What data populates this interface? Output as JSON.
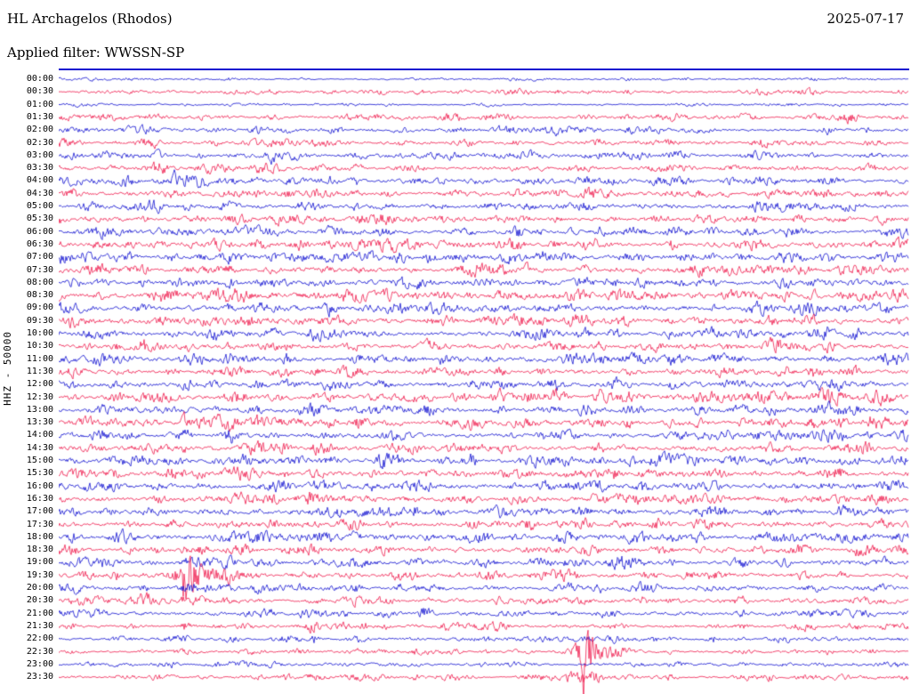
{
  "header": {
    "station_title": "HL Archagelos (Rhodos)",
    "date": "2025-07-17",
    "filter_label": "Applied filter: WWSSN-SP"
  },
  "axis": {
    "scale_label": "HHZ - 50000"
  },
  "colors": {
    "trace_blue": "#1212d0",
    "trace_red": "#ef1a4d",
    "text": "#000000",
    "background": "#ffffff",
    "top_line": "#1212d0"
  },
  "chart_data": {
    "type": "line",
    "title": "HL Archagelos (Rhodos) helicorder, 2025-07-17, filter WWSSN-SP, channel HHZ, scale 50000",
    "minutes_per_row": 30,
    "legend_position": "none",
    "grid": false,
    "color_pattern": [
      "blue",
      "red"
    ],
    "row_labels": [
      "00:00",
      "00:30",
      "01:00",
      "01:30",
      "02:00",
      "02:30",
      "03:00",
      "03:30",
      "04:00",
      "04:30",
      "05:00",
      "05:30",
      "06:00",
      "06:30",
      "07:00",
      "07:30",
      "08:00",
      "08:30",
      "09:00",
      "09:30",
      "10:00",
      "10:30",
      "11:00",
      "11:30",
      "12:00",
      "12:30",
      "13:00",
      "13:30",
      "14:00",
      "14:30",
      "15:00",
      "15:30",
      "16:00",
      "16:30",
      "17:00",
      "17:30",
      "18:00",
      "18:30",
      "19:00",
      "19:30",
      "20:00",
      "20:30",
      "21:00",
      "21:30",
      "22:00",
      "22:30",
      "23:00",
      "23:30"
    ],
    "base_amplitudes": [
      1.0,
      1.6,
      0.9,
      2.0,
      2.2,
      2.2,
      2.3,
      2.4,
      2.6,
      2.8,
      2.8,
      2.8,
      3.0,
      3.2,
      3.2,
      3.4,
      3.5,
      3.5,
      3.5,
      3.4,
      3.5,
      3.5,
      3.4,
      3.3,
      3.3,
      3.5,
      3.4,
      3.5,
      3.4,
      3.3,
      3.3,
      3.3,
      3.5,
      3.5,
      3.4,
      3.2,
      3.2,
      3.0,
      3.0,
      2.8,
      2.6,
      2.6,
      2.4,
      2.2,
      2.0,
      1.8,
      1.6,
      1.8
    ],
    "events": [
      {
        "row": 1,
        "pos": 0.38,
        "sigma": 0.004,
        "amp": 5
      },
      {
        "row": 3,
        "pos": 0.72,
        "sigma": 0.01,
        "amp": 7
      },
      {
        "row": 3,
        "pos": 0.93,
        "sigma": 0.006,
        "amp": 6
      },
      {
        "row": 4,
        "pos": 0.33,
        "sigma": 0.004,
        "amp": 5
      },
      {
        "row": 4,
        "pos": 0.1,
        "sigma": 0.008,
        "amp": 5
      },
      {
        "row": 5,
        "pos": 0.11,
        "sigma": 0.006,
        "amp": 6
      },
      {
        "row": 6,
        "pos": 0.25,
        "sigma": 0.004,
        "amp": 5
      },
      {
        "row": 7,
        "pos": 0.12,
        "sigma": 0.008,
        "amp": 6
      },
      {
        "row": 8,
        "pos": 0.136,
        "sigma": 0.006,
        "amp": 14
      },
      {
        "row": 8,
        "pos": 0.16,
        "sigma": 0.012,
        "amp": 5
      },
      {
        "row": 9,
        "pos": 0.35,
        "sigma": 0.004,
        "amp": 6
      },
      {
        "row": 10,
        "pos": 0.35,
        "sigma": 0.003,
        "amp": 8
      },
      {
        "row": 10,
        "pos": 0.62,
        "sigma": 0.004,
        "amp": 5
      },
      {
        "row": 12,
        "pos": 0.54,
        "sigma": 0.004,
        "amp": 6
      },
      {
        "row": 13,
        "pos": 0.54,
        "sigma": 0.005,
        "amp": 7
      },
      {
        "row": 13,
        "pos": 0.63,
        "sigma": 0.004,
        "amp": 6
      },
      {
        "row": 14,
        "pos": 0.25,
        "sigma": 0.004,
        "amp": 6
      },
      {
        "row": 15,
        "pos": 0.55,
        "sigma": 0.004,
        "amp": 7
      },
      {
        "row": 15,
        "pos": 0.2,
        "sigma": 0.005,
        "amp": 5
      },
      {
        "row": 16,
        "pos": 0.42,
        "sigma": 0.005,
        "amp": 6
      },
      {
        "row": 17,
        "pos": 0.42,
        "sigma": 0.004,
        "amp": 6
      },
      {
        "row": 17,
        "pos": 0.75,
        "sigma": 0.004,
        "amp": 5
      },
      {
        "row": 19,
        "pos": 0.54,
        "sigma": 0.004,
        "amp": 6
      },
      {
        "row": 20,
        "pos": 0.3,
        "sigma": 0.004,
        "amp": 6
      },
      {
        "row": 21,
        "pos": 0.88,
        "sigma": 0.004,
        "amp": 7
      },
      {
        "row": 21,
        "pos": 0.1,
        "sigma": 0.005,
        "amp": 5
      },
      {
        "row": 23,
        "pos": 0.44,
        "sigma": 0.004,
        "amp": 6
      },
      {
        "row": 24,
        "pos": 0.15,
        "sigma": 0.005,
        "amp": 6
      },
      {
        "row": 25,
        "pos": 0.9,
        "sigma": 0.004,
        "amp": 6
      },
      {
        "row": 26,
        "pos": 0.52,
        "sigma": 0.004,
        "amp": 6
      },
      {
        "row": 27,
        "pos": 0.147,
        "sigma": 0.002,
        "amp": 7
      },
      {
        "row": 28,
        "pos": 0.2,
        "sigma": 0.004,
        "amp": 6
      },
      {
        "row": 29,
        "pos": 0.147,
        "sigma": 0.002,
        "amp": 6
      },
      {
        "row": 29,
        "pos": 0.52,
        "sigma": 0.004,
        "amp": 6
      },
      {
        "row": 30,
        "pos": 0.38,
        "sigma": 0.003,
        "amp": 7
      },
      {
        "row": 31,
        "pos": 0.147,
        "sigma": 0.002,
        "amp": 6
      },
      {
        "row": 32,
        "pos": 0.9,
        "sigma": 0.004,
        "amp": 6
      },
      {
        "row": 33,
        "pos": 0.3,
        "sigma": 0.006,
        "amp": 7
      },
      {
        "row": 33,
        "pos": 0.147,
        "sigma": 0.002,
        "amp": 6
      },
      {
        "row": 34,
        "pos": 0.02,
        "sigma": 0.005,
        "amp": 8
      },
      {
        "row": 34,
        "pos": 0.33,
        "sigma": 0.006,
        "amp": 7
      },
      {
        "row": 35,
        "pos": 0.147,
        "sigma": 0.002,
        "amp": 6
      },
      {
        "row": 36,
        "pos": 0.35,
        "sigma": 0.003,
        "amp": 7
      },
      {
        "row": 37,
        "pos": 0.147,
        "sigma": 0.002,
        "amp": 7
      },
      {
        "row": 38,
        "pos": 0.66,
        "sigma": 0.003,
        "amp": 7
      },
      {
        "row": 39,
        "pos": 0.147,
        "sigma": 0.0015,
        "amp": 80
      },
      {
        "row": 39,
        "pos": 0.152,
        "sigma": 0.008,
        "amp": 38
      },
      {
        "row": 39,
        "pos": 0.185,
        "sigma": 0.022,
        "amp": 14
      },
      {
        "row": 40,
        "pos": 0.1,
        "sigma": 0.004,
        "amp": 6
      },
      {
        "row": 40,
        "pos": 0.42,
        "sigma": 0.003,
        "amp": 6
      },
      {
        "row": 41,
        "pos": 0.1,
        "sigma": 0.006,
        "amp": 10
      },
      {
        "row": 41,
        "pos": 0.147,
        "sigma": 0.002,
        "amp": 8
      },
      {
        "row": 42,
        "pos": 0.43,
        "sigma": 0.005,
        "amp": 10
      },
      {
        "row": 43,
        "pos": 0.3,
        "sigma": 0.004,
        "amp": 12
      },
      {
        "row": 43,
        "pos": 0.36,
        "sigma": 0.003,
        "amp": 7
      },
      {
        "row": 43,
        "pos": 0.147,
        "sigma": 0.002,
        "amp": 6
      },
      {
        "row": 44,
        "pos": 0.3,
        "sigma": 0.003,
        "amp": 7
      },
      {
        "row": 44,
        "pos": 0.7,
        "sigma": 0.003,
        "amp": 6
      },
      {
        "row": 45,
        "pos": 0.617,
        "sigma": 0.002,
        "amp": 70
      },
      {
        "row": 45,
        "pos": 0.62,
        "sigma": 0.009,
        "amp": 40
      },
      {
        "row": 45,
        "pos": 0.645,
        "sigma": 0.02,
        "amp": 12
      },
      {
        "row": 46,
        "pos": 0.5,
        "sigma": 0.003,
        "amp": 5
      },
      {
        "row": 47,
        "pos": 0.3,
        "sigma": 0.004,
        "amp": 7
      },
      {
        "row": 47,
        "pos": 0.62,
        "sigma": 0.015,
        "amp": 12
      }
    ]
  }
}
